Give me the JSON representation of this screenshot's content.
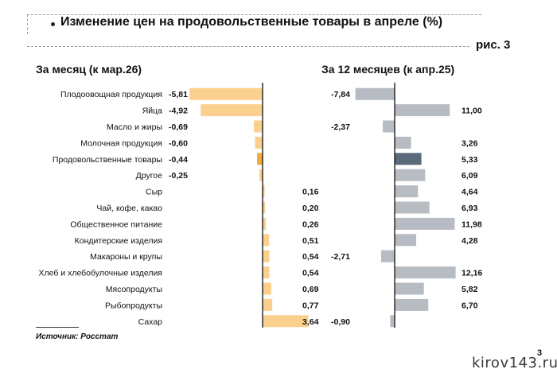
{
  "header": {
    "title": "Изменение цен на продовольственные товары в апреле (%)",
    "figure_label": "рис. 3"
  },
  "footer": {
    "source": "Источник: Росстат",
    "page_number": "3",
    "watermark": "kirov143.ru"
  },
  "colors": {
    "monthly_bar": "#fbd08e",
    "monthly_highlight": "#f2ab3b",
    "yearly_bar": "#b7bcc3",
    "yearly_highlight": "#5a6a7b",
    "axis": "#111111"
  },
  "chart_data": [
    {
      "type": "bar",
      "orientation": "horizontal",
      "title": "За месяц (к мар.26)",
      "categories": [
        "Плодоовощная продукция",
        "Яйца",
        "Масло и жиры",
        "Молочная продукция",
        "Продовольственные товары",
        "Другое",
        "Сыр",
        "Чай, кофе, какао",
        "Общественное питание",
        "Кондитерские изделия",
        "Макароны и крупы",
        "Хлеб и хлебобулочные изделия",
        "Мясопродукты",
        "Рыбопродукты",
        "Сахар"
      ],
      "values": [
        -5.81,
        -4.92,
        -0.69,
        -0.6,
        -0.44,
        -0.25,
        0.16,
        0.2,
        0.26,
        0.51,
        0.54,
        0.54,
        0.69,
        0.77,
        3.64
      ],
      "labels": [
        "-5,81",
        "-4,92",
        "-0,69",
        "-0,60",
        "-0,44",
        "-0,25",
        "0,16",
        "0,20",
        "0,26",
        "0,51",
        "0,54",
        "0,54",
        "0,69",
        "0,77",
        "3,64"
      ],
      "highlight_index": 4
    },
    {
      "type": "bar",
      "orientation": "horizontal",
      "title": "За 12 месяцев (к апр.25)",
      "categories": [
        "Плодоовощная продукция",
        "Яйца",
        "Масло и жиры",
        "Молочная продукция",
        "Продовольственные товары",
        "Другое",
        "Сыр",
        "Чай, кофе, какао",
        "Общественное питание",
        "Кондитерские изделия",
        "Макароны и крупы",
        "Хлеб и хлебобулочные изделия",
        "Мясопродукты",
        "Рыбопродукты",
        "Сахар"
      ],
      "values": [
        -7.84,
        11.0,
        -2.37,
        3.26,
        5.33,
        6.09,
        4.64,
        6.93,
        11.98,
        4.28,
        -2.71,
        12.16,
        5.82,
        6.7,
        -0.9
      ],
      "labels": [
        "-7,84",
        "11,00",
        "-2,37",
        "3,26",
        "5,33",
        "6,09",
        "4,64",
        "6,93",
        "11,98",
        "4,28",
        "-2,71",
        "12,16",
        "5,82",
        "6,70",
        "-0,90"
      ],
      "highlight_index": 4
    }
  ]
}
